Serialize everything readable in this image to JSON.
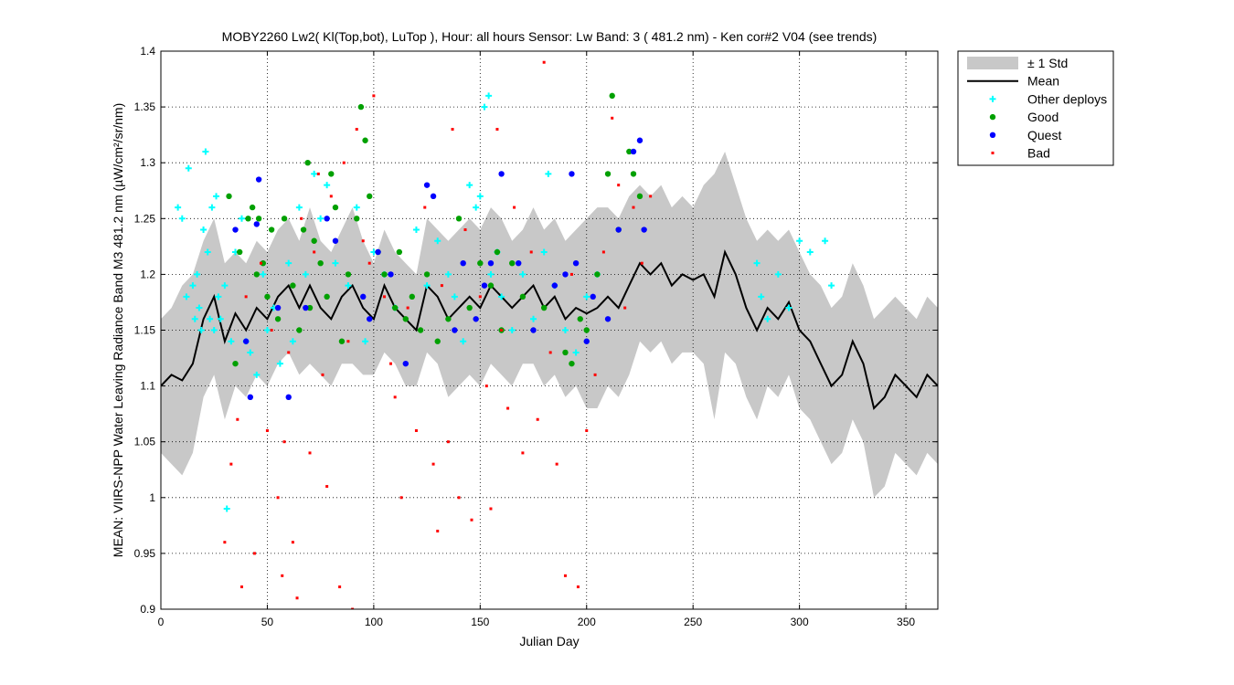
{
  "chart_data": {
    "type": "scatter",
    "title": "MOBY2260   Lw2( Kl(Top,bot), LuTop ),   Hour: all hours  Sensor: Lw Band: 3 ( 481.2 nm)  - Ken cor#2 V04 (see trends)",
    "xlabel": "Julian Day",
    "ylabel": "MEAN: VIIRS-NPP Water Leaving Radiance Band M3 481.2 nm (µW/cm²/sr/nm)",
    "xlim": [
      0,
      365
    ],
    "ylim": [
      0.9,
      1.4
    ],
    "xticks": [
      0,
      50,
      100,
      150,
      200,
      250,
      300,
      350
    ],
    "yticks": [
      0.9,
      0.95,
      1,
      1.05,
      1.1,
      1.15,
      1.2,
      1.25,
      1.3,
      1.35,
      1.4
    ],
    "ytick_labels": [
      "0.9",
      "0.95",
      "1",
      "1.05",
      "1.1",
      "1.15",
      "1.2",
      "1.25",
      "1.3",
      "1.35",
      "1.4"
    ],
    "grid": true,
    "legend_position": "outside-top-right",
    "colors": {
      "std_band": "#c8c8c8",
      "mean": "#000000",
      "other": "#00ffff",
      "good": "#00a000",
      "quest": "#0000ff",
      "bad": "#ff0000"
    },
    "legend": [
      {
        "key": "std",
        "label": "± 1 Std"
      },
      {
        "key": "mean",
        "label": "Mean"
      },
      {
        "key": "other",
        "label": "Other deploys"
      },
      {
        "key": "good",
        "label": "Good"
      },
      {
        "key": "quest",
        "label": "Quest"
      },
      {
        "key": "bad",
        "label": "Bad"
      }
    ],
    "mean_series": {
      "name": "Mean",
      "x": [
        0,
        5,
        10,
        15,
        20,
        25,
        30,
        35,
        40,
        45,
        50,
        55,
        60,
        65,
        70,
        75,
        80,
        85,
        90,
        95,
        100,
        105,
        110,
        115,
        120,
        125,
        130,
        135,
        140,
        145,
        150,
        155,
        160,
        165,
        170,
        175,
        180,
        185,
        190,
        195,
        200,
        205,
        210,
        215,
        220,
        225,
        230,
        235,
        240,
        245,
        250,
        255,
        260,
        265,
        270,
        275,
        280,
        285,
        290,
        295,
        300,
        305,
        310,
        315,
        320,
        325,
        330,
        335,
        340,
        345,
        350,
        355,
        360,
        365
      ],
      "y": [
        1.1,
        1.11,
        1.105,
        1.12,
        1.16,
        1.18,
        1.14,
        1.165,
        1.15,
        1.17,
        1.16,
        1.18,
        1.19,
        1.17,
        1.19,
        1.17,
        1.16,
        1.18,
        1.19,
        1.17,
        1.16,
        1.19,
        1.17,
        1.16,
        1.15,
        1.19,
        1.18,
        1.16,
        1.17,
        1.18,
        1.17,
        1.19,
        1.18,
        1.17,
        1.18,
        1.19,
        1.17,
        1.18,
        1.16,
        1.17,
        1.165,
        1.17,
        1.18,
        1.17,
        1.19,
        1.21,
        1.2,
        1.21,
        1.19,
        1.2,
        1.195,
        1.2,
        1.18,
        1.22,
        1.2,
        1.17,
        1.15,
        1.17,
        1.16,
        1.175,
        1.15,
        1.14,
        1.12,
        1.1,
        1.11,
        1.14,
        1.12,
        1.08,
        1.09,
        1.11,
        1.1,
        1.09,
        1.11,
        1.1
      ]
    },
    "std_band": {
      "name": "± 1 Std",
      "x": [
        0,
        5,
        10,
        15,
        20,
        25,
        30,
        35,
        40,
        45,
        50,
        55,
        60,
        65,
        70,
        75,
        80,
        85,
        90,
        95,
        100,
        105,
        110,
        115,
        120,
        125,
        130,
        135,
        140,
        145,
        150,
        155,
        160,
        165,
        170,
        175,
        180,
        185,
        190,
        195,
        200,
        205,
        210,
        215,
        220,
        225,
        230,
        235,
        240,
        245,
        250,
        255,
        260,
        265,
        270,
        275,
        280,
        285,
        290,
        295,
        300,
        305,
        310,
        315,
        320,
        325,
        330,
        335,
        340,
        345,
        350,
        355,
        360,
        365
      ],
      "upper": [
        1.16,
        1.17,
        1.19,
        1.2,
        1.23,
        1.25,
        1.21,
        1.22,
        1.21,
        1.23,
        1.22,
        1.24,
        1.25,
        1.23,
        1.26,
        1.23,
        1.22,
        1.24,
        1.26,
        1.23,
        1.21,
        1.24,
        1.22,
        1.21,
        1.2,
        1.25,
        1.24,
        1.23,
        1.24,
        1.25,
        1.24,
        1.26,
        1.25,
        1.23,
        1.24,
        1.26,
        1.24,
        1.25,
        1.23,
        1.24,
        1.25,
        1.26,
        1.26,
        1.25,
        1.27,
        1.28,
        1.27,
        1.28,
        1.26,
        1.27,
        1.26,
        1.28,
        1.29,
        1.31,
        1.28,
        1.25,
        1.23,
        1.24,
        1.23,
        1.24,
        1.22,
        1.2,
        1.19,
        1.17,
        1.18,
        1.21,
        1.19,
        1.16,
        1.17,
        1.18,
        1.17,
        1.16,
        1.18,
        1.17
      ],
      "lower": [
        1.04,
        1.03,
        1.02,
        1.04,
        1.09,
        1.11,
        1.07,
        1.1,
        1.09,
        1.11,
        1.1,
        1.12,
        1.13,
        1.11,
        1.12,
        1.11,
        1.1,
        1.12,
        1.12,
        1.11,
        1.11,
        1.13,
        1.12,
        1.1,
        1.1,
        1.13,
        1.12,
        1.09,
        1.1,
        1.11,
        1.1,
        1.12,
        1.11,
        1.1,
        1.12,
        1.12,
        1.1,
        1.11,
        1.09,
        1.1,
        1.08,
        1.08,
        1.1,
        1.09,
        1.11,
        1.14,
        1.13,
        1.14,
        1.12,
        1.13,
        1.13,
        1.12,
        1.07,
        1.13,
        1.12,
        1.09,
        1.07,
        1.1,
        1.09,
        1.11,
        1.08,
        1.07,
        1.05,
        1.03,
        1.04,
        1.07,
        1.05,
        1.0,
        1.01,
        1.04,
        1.03,
        1.02,
        1.04,
        1.03
      ]
    },
    "series": [
      {
        "key": "other",
        "name": "Other deploys",
        "x": [
          8,
          10,
          12,
          13,
          15,
          16,
          17,
          18,
          19,
          20,
          21,
          22,
          23,
          24,
          25,
          26,
          27,
          28,
          30,
          31,
          33,
          35,
          38,
          40,
          42,
          45,
          48,
          50,
          53,
          56,
          60,
          62,
          65,
          68,
          72,
          75,
          78,
          82,
          88,
          92,
          96,
          100,
          105,
          110,
          120,
          125,
          130,
          135,
          138,
          142,
          145,
          148,
          150,
          152,
          154,
          155,
          158,
          160,
          165,
          170,
          175,
          180,
          182,
          185,
          190,
          195,
          200,
          205,
          280,
          282,
          285,
          290,
          295,
          300,
          305,
          312,
          315
        ],
        "y": [
          1.26,
          1.25,
          1.18,
          1.295,
          1.19,
          1.16,
          1.2,
          1.17,
          1.15,
          1.24,
          1.31,
          1.22,
          1.16,
          1.26,
          1.15,
          1.27,
          1.18,
          1.16,
          1.19,
          0.99,
          1.14,
          1.22,
          1.25,
          1.14,
          1.13,
          1.11,
          1.2,
          1.15,
          1.17,
          1.12,
          1.21,
          1.14,
          1.26,
          1.2,
          1.29,
          1.25,
          1.28,
          1.21,
          1.19,
          1.26,
          1.14,
          1.22,
          1.2,
          1.17,
          1.24,
          1.19,
          1.23,
          1.2,
          1.18,
          1.14,
          1.28,
          1.26,
          1.27,
          1.35,
          1.36,
          1.2,
          1.22,
          1.18,
          1.15,
          1.2,
          1.16,
          1.22,
          1.29,
          1.19,
          1.15,
          1.13,
          1.18,
          1.2,
          1.21,
          1.18,
          1.16,
          1.2,
          1.17,
          1.23,
          1.22,
          1.23,
          1.19
        ]
      },
      {
        "key": "good",
        "name": "Good",
        "x": [
          32,
          35,
          37,
          41,
          43,
          45,
          46,
          48,
          50,
          52,
          55,
          58,
          62,
          65,
          67,
          69,
          70,
          72,
          75,
          78,
          80,
          82,
          85,
          88,
          92,
          94,
          96,
          98,
          102,
          105,
          110,
          112,
          115,
          118,
          122,
          125,
          130,
          135,
          140,
          145,
          150,
          155,
          158,
          160,
          165,
          170,
          180,
          190,
          193,
          197,
          200,
          205,
          210,
          212,
          215,
          220,
          222,
          225
        ],
        "y": [
          1.27,
          1.12,
          1.22,
          1.25,
          1.26,
          1.2,
          1.25,
          1.21,
          1.18,
          1.24,
          1.16,
          1.25,
          1.19,
          1.15,
          1.24,
          1.3,
          1.17,
          1.23,
          1.21,
          1.18,
          1.29,
          1.26,
          1.14,
          1.2,
          1.25,
          1.35,
          1.32,
          1.27,
          1.22,
          1.2,
          1.17,
          1.22,
          1.16,
          1.18,
          1.15,
          1.2,
          1.14,
          1.16,
          1.25,
          1.17,
          1.21,
          1.19,
          1.22,
          1.15,
          1.21,
          1.18,
          1.17,
          1.13,
          1.12,
          1.16,
          1.15,
          1.2,
          1.29,
          1.36,
          1.24,
          1.31,
          1.29,
          1.27
        ]
      },
      {
        "key": "quest",
        "name": "Quest",
        "x": [
          35,
          40,
          42,
          45,
          46,
          55,
          60,
          68,
          78,
          82,
          95,
          98,
          102,
          108,
          115,
          125,
          128,
          138,
          142,
          148,
          152,
          155,
          160,
          168,
          175,
          185,
          190,
          193,
          195,
          200,
          203,
          210,
          215,
          222,
          225,
          227
        ],
        "y": [
          1.24,
          1.14,
          1.09,
          1.245,
          1.285,
          1.17,
          1.09,
          1.17,
          1.25,
          1.23,
          1.18,
          1.16,
          1.22,
          1.2,
          1.12,
          1.28,
          1.27,
          1.15,
          1.21,
          1.16,
          1.19,
          1.21,
          1.29,
          1.21,
          1.15,
          1.19,
          1.2,
          1.29,
          1.21,
          1.14,
          1.18,
          1.16,
          1.24,
          1.31,
          1.32,
          1.24
        ]
      },
      {
        "key": "bad",
        "name": "Bad",
        "x": [
          30,
          33,
          36,
          38,
          40,
          44,
          47,
          50,
          52,
          55,
          57,
          58,
          60,
          62,
          64,
          66,
          70,
          72,
          74,
          76,
          78,
          80,
          84,
          86,
          88,
          90,
          92,
          95,
          98,
          100,
          105,
          108,
          110,
          113,
          116,
          120,
          124,
          128,
          130,
          132,
          135,
          137,
          140,
          143,
          146,
          150,
          153,
          155,
          158,
          160,
          163,
          166,
          170,
          174,
          177,
          180,
          183,
          186,
          190,
          193,
          196,
          200,
          204,
          208,
          212,
          215,
          218,
          222,
          226,
          230
        ],
        "y": [
          0.96,
          1.03,
          1.07,
          0.92,
          1.18,
          0.95,
          1.21,
          1.06,
          1.15,
          1.0,
          0.93,
          1.05,
          1.13,
          0.96,
          0.91,
          1.25,
          1.04,
          1.22,
          1.29,
          1.11,
          1.01,
          1.27,
          0.92,
          1.3,
          1.14,
          0.9,
          1.33,
          1.23,
          1.21,
          1.36,
          1.18,
          1.12,
          1.09,
          1.0,
          1.17,
          1.06,
          1.26,
          1.03,
          0.97,
          1.19,
          1.05,
          1.33,
          1.0,
          1.24,
          0.98,
          1.18,
          1.1,
          0.99,
          1.33,
          1.15,
          1.08,
          1.26,
          1.04,
          1.22,
          1.07,
          1.39,
          1.13,
          1.03,
          0.93,
          1.2,
          0.92,
          1.06,
          1.11,
          1.22,
          1.34,
          1.28,
          1.17,
          1.26,
          1.21,
          1.27
        ]
      }
    ]
  }
}
